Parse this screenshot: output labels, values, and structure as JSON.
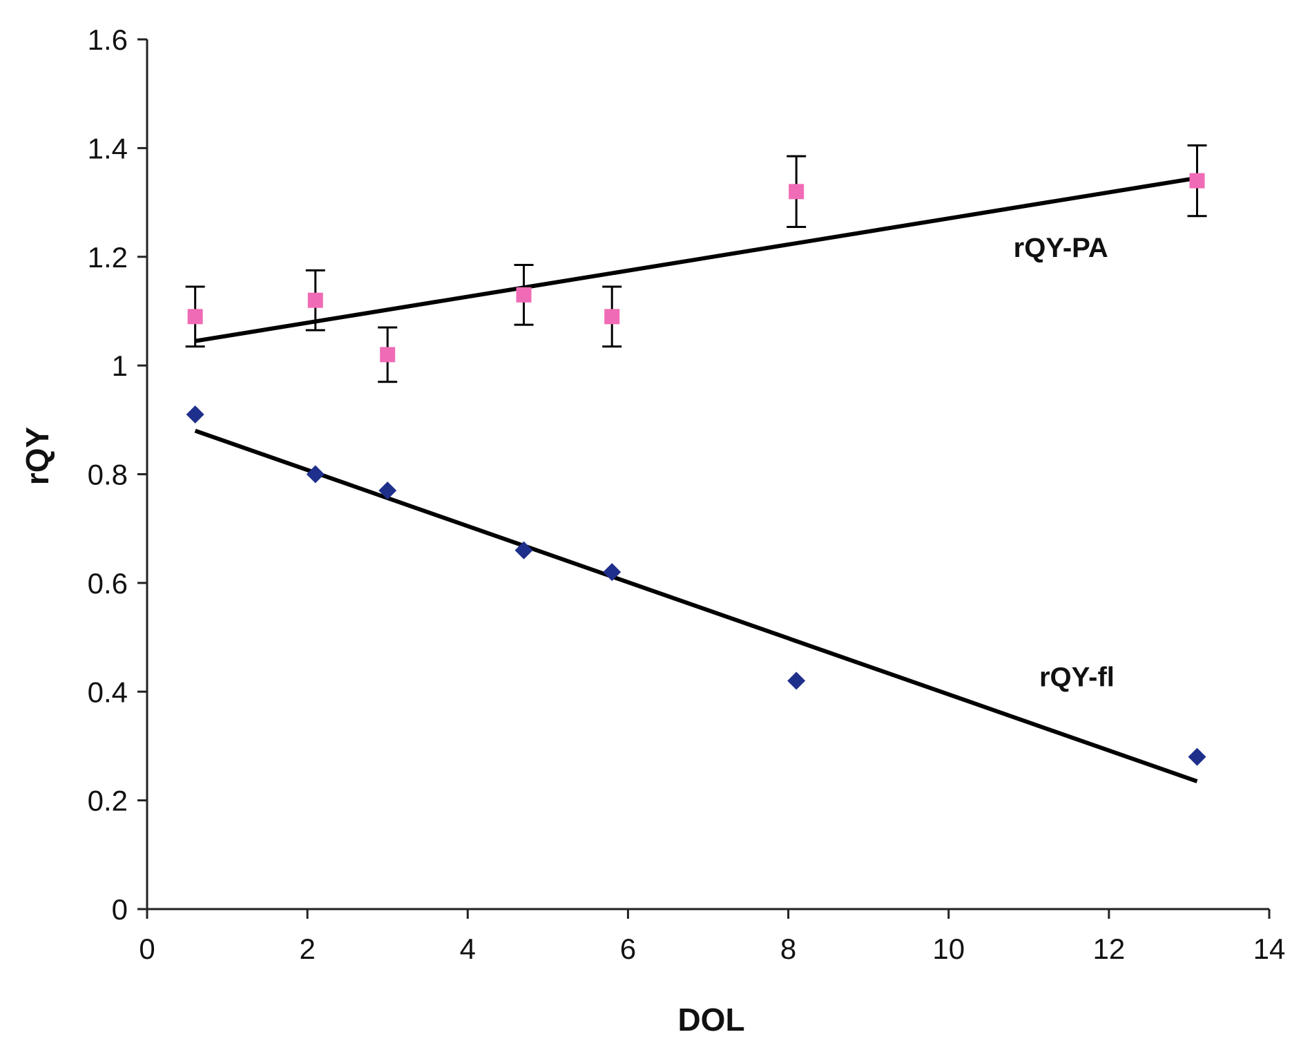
{
  "chart_data": {
    "type": "scatter",
    "title": "",
    "xlabel": "DOL",
    "ylabel": "rQY",
    "xlim": [
      0,
      14
    ],
    "ylim": [
      0,
      1.6
    ],
    "xticks": [
      0,
      2,
      4,
      6,
      8,
      10,
      12,
      14
    ],
    "yticks": [
      0,
      0.2,
      0.4,
      0.6,
      0.8,
      1,
      1.2,
      1.4,
      1.6
    ],
    "xtick_labels": [
      "0",
      "2",
      "4",
      "6",
      "8",
      "10",
      "12",
      "14"
    ],
    "ytick_labels": [
      "0",
      "0.2",
      "0.4",
      "0.6",
      "0.8",
      "1",
      "1.2",
      "1.4",
      "1.6"
    ],
    "grid": false,
    "series": [
      {
        "name": "rQY-PA",
        "label": "rQY-PA",
        "marker": "square",
        "color": "#f06bb5",
        "x": [
          0.6,
          2.1,
          3.0,
          4.7,
          5.8,
          8.1,
          13.1
        ],
        "y": [
          1.09,
          1.12,
          1.02,
          1.13,
          1.09,
          1.32,
          1.34
        ],
        "error": [
          0.055,
          0.055,
          0.05,
          0.055,
          0.055,
          0.065,
          0.065
        ],
        "trend": {
          "x": [
            0.6,
            13.1
          ],
          "y": [
            1.045,
            1.345
          ]
        },
        "label_at": [
          11.4,
          1.2
        ]
      },
      {
        "name": "rQY-fl",
        "label": "rQY-fl",
        "marker": "diamond",
        "color": "#1f2f8c",
        "x": [
          0.6,
          2.1,
          3.0,
          4.7,
          5.8,
          8.1,
          13.1
        ],
        "y": [
          0.91,
          0.8,
          0.77,
          0.66,
          0.62,
          0.42,
          0.28
        ],
        "error": null,
        "trend": {
          "x": [
            0.6,
            13.1
          ],
          "y": [
            0.88,
            0.235
          ]
        },
        "label_at": [
          11.6,
          0.41
        ]
      }
    ]
  }
}
